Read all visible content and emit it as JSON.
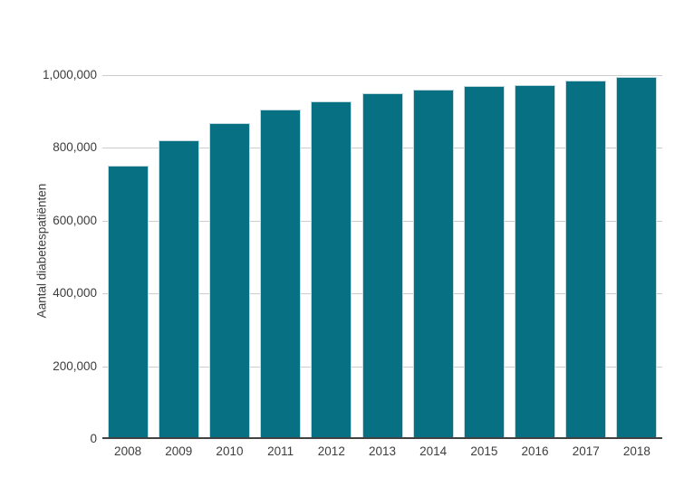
{
  "figure": {
    "background": "#ffffff"
  },
  "chart_data": {
    "type": "bar",
    "title": "",
    "categories": [
      "2008",
      "2009",
      "2010",
      "2011",
      "2012",
      "2013",
      "2014",
      "2015",
      "2016",
      "2017",
      "2018"
    ],
    "values": [
      752000,
      820000,
      867000,
      906000,
      928000,
      951000,
      960000,
      969000,
      973000,
      984000,
      994000
    ],
    "xlabel": "",
    "ylabel": "Aantal diabetespatiënten",
    "ylim": [
      0,
      1000000
    ],
    "yticks": [
      0,
      200000,
      400000,
      600000,
      800000,
      1000000
    ],
    "ytick_labels": [
      "0",
      "200,000",
      "400,000",
      "600,000",
      "800,000",
      "1,000,000"
    ],
    "grid": "horizontal",
    "legend": "none",
    "colors": {
      "bar_fill": "#077183",
      "bar_border": "#c2d9df",
      "gridline": "#cccccc",
      "axis_line": "#424242",
      "tick_text": "#3d3d3d"
    }
  }
}
